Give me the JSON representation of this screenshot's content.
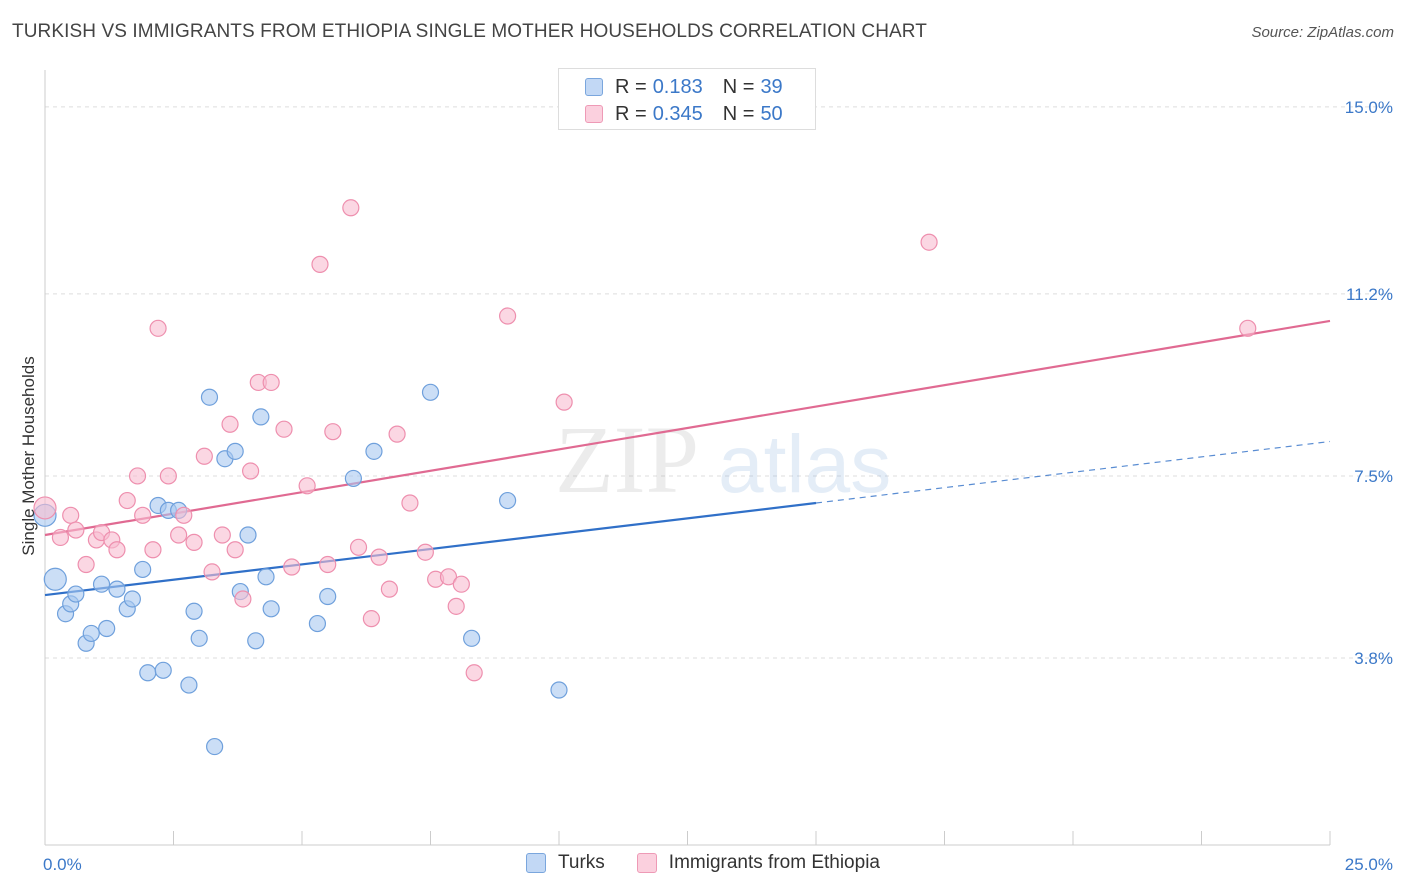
{
  "header": {
    "title": "TURKISH VS IMMIGRANTS FROM ETHIOPIA SINGLE MOTHER HOUSEHOLDS CORRELATION CHART",
    "source": "Source: ZipAtlas.com"
  },
  "watermark": {
    "zip": "ZIP",
    "atlas": "atlas"
  },
  "legend": {
    "rows": [
      {
        "r_label": "R =",
        "r_value": "0.183",
        "n_label": "N =",
        "n_value": "39"
      },
      {
        "r_label": "R =",
        "r_value": "0.345",
        "n_label": "N =",
        "n_value": "50"
      }
    ]
  },
  "chart_data": {
    "type": "scatter",
    "ylabel": "Single Mother Households",
    "xlim": [
      0,
      25
    ],
    "ylim": [
      0,
      15.75
    ],
    "x_tick_labels": [
      "0.0%",
      "25.0%"
    ],
    "y_ticks": [
      3.8,
      7.5,
      11.2,
      15.0
    ],
    "y_tick_labels": [
      "3.8%",
      "7.5%",
      "11.2%",
      "15.0%"
    ],
    "grid": "horizontal-dashed",
    "legend_placement": "top-center",
    "series": [
      {
        "name": "Turks",
        "color": "#a8c8f0",
        "stroke": "#6fa0dc",
        "line_color": "#3070c8",
        "trend": {
          "x0": 0,
          "y0": 5.08,
          "x1": 15,
          "y1": 6.95,
          "dashed_to_x": 25,
          "dashed_to_y": 8.2
        },
        "points": [
          [
            0.0,
            6.7
          ],
          [
            0.2,
            5.4
          ],
          [
            0.4,
            4.7
          ],
          [
            0.5,
            4.9
          ],
          [
            0.6,
            5.1
          ],
          [
            0.8,
            4.1
          ],
          [
            0.9,
            4.3
          ],
          [
            1.1,
            5.3
          ],
          [
            1.2,
            4.4
          ],
          [
            1.4,
            5.2
          ],
          [
            1.6,
            4.8
          ],
          [
            1.7,
            5.0
          ],
          [
            1.9,
            5.6
          ],
          [
            2.0,
            3.5
          ],
          [
            2.2,
            6.9
          ],
          [
            2.3,
            3.55
          ],
          [
            2.4,
            6.8
          ],
          [
            2.6,
            6.8
          ],
          [
            2.8,
            3.25
          ],
          [
            2.9,
            4.75
          ],
          [
            3.0,
            4.2
          ],
          [
            3.2,
            9.1
          ],
          [
            3.3,
            2.0
          ],
          [
            3.5,
            7.85
          ],
          [
            3.7,
            8.0
          ],
          [
            3.8,
            5.15
          ],
          [
            3.95,
            6.3
          ],
          [
            4.1,
            4.15
          ],
          [
            4.2,
            8.7
          ],
          [
            4.3,
            5.45
          ],
          [
            4.4,
            4.8
          ],
          [
            5.3,
            4.5
          ],
          [
            5.5,
            5.05
          ],
          [
            6.0,
            7.45
          ],
          [
            6.4,
            8.0
          ],
          [
            7.5,
            9.2
          ],
          [
            8.3,
            4.2
          ],
          [
            9.0,
            7.0
          ],
          [
            10.0,
            3.15
          ]
        ],
        "big_points": [
          0,
          1
        ]
      },
      {
        "name": "Immigrants from Ethiopia",
        "color": "#f8bcd0",
        "stroke": "#ee8fae",
        "line_color": "#e06a92",
        "trend": {
          "x0": 0,
          "y0": 6.3,
          "x1": 25,
          "y1": 10.65
        },
        "points": [
          [
            0.0,
            6.85
          ],
          [
            0.3,
            6.25
          ],
          [
            0.5,
            6.7
          ],
          [
            0.6,
            6.4
          ],
          [
            0.8,
            5.7
          ],
          [
            1.0,
            6.2
          ],
          [
            1.1,
            6.35
          ],
          [
            1.3,
            6.2
          ],
          [
            1.4,
            6.0
          ],
          [
            1.6,
            7.0
          ],
          [
            1.8,
            7.5
          ],
          [
            1.9,
            6.7
          ],
          [
            2.1,
            6.0
          ],
          [
            2.2,
            10.5
          ],
          [
            2.4,
            7.5
          ],
          [
            2.6,
            6.3
          ],
          [
            2.7,
            6.7
          ],
          [
            2.9,
            6.15
          ],
          [
            3.1,
            7.9
          ],
          [
            3.25,
            5.55
          ],
          [
            3.45,
            6.3
          ],
          [
            3.6,
            8.55
          ],
          [
            3.7,
            6.0
          ],
          [
            3.85,
            5.0
          ],
          [
            4.0,
            7.6
          ],
          [
            4.15,
            9.4
          ],
          [
            4.4,
            9.4
          ],
          [
            4.65,
            8.45
          ],
          [
            4.8,
            5.65
          ],
          [
            5.1,
            7.3
          ],
          [
            5.35,
            11.8
          ],
          [
            5.5,
            5.7
          ],
          [
            5.6,
            8.4
          ],
          [
            5.95,
            12.95
          ],
          [
            6.1,
            6.05
          ],
          [
            6.35,
            4.6
          ],
          [
            6.5,
            5.85
          ],
          [
            6.7,
            5.2
          ],
          [
            6.85,
            8.35
          ],
          [
            7.1,
            6.95
          ],
          [
            7.4,
            5.95
          ],
          [
            7.6,
            5.4
          ],
          [
            7.85,
            5.45
          ],
          [
            8.0,
            4.85
          ],
          [
            8.1,
            5.3
          ],
          [
            8.35,
            3.5
          ],
          [
            9.0,
            10.75
          ],
          [
            10.1,
            9.0
          ],
          [
            17.2,
            12.25
          ],
          [
            23.4,
            10.5
          ]
        ],
        "big_points": [
          0
        ]
      }
    ]
  },
  "bottom_legend": {
    "items": [
      "Turks",
      "Immigrants from Ethiopia"
    ]
  }
}
